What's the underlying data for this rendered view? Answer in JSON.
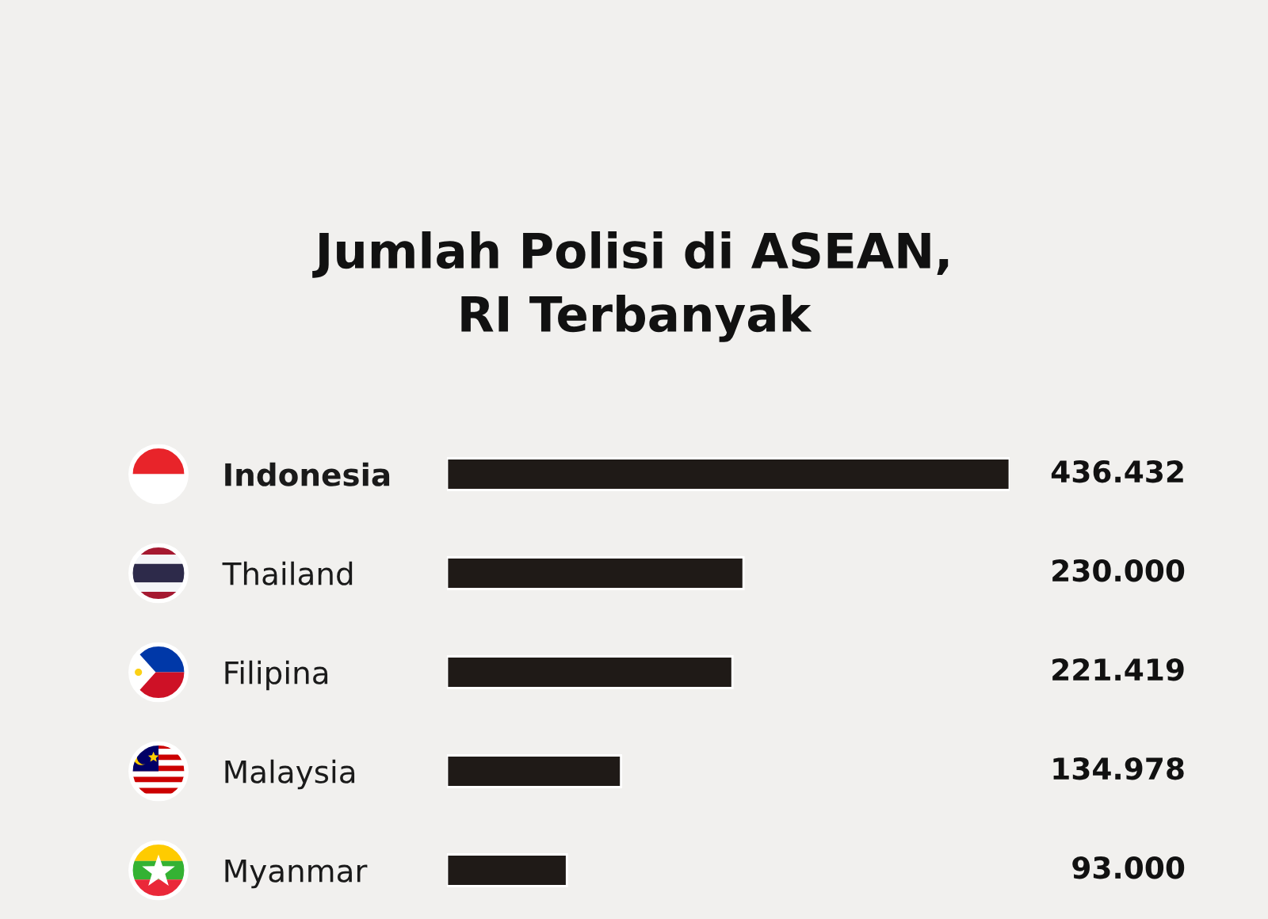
{
  "chart_data": {
    "type": "bar",
    "orientation": "horizontal",
    "title": "Jumlah Polisi di ASEAN,\nRI Terbanyak",
    "categories": [
      "Indonesia",
      "Thailand",
      "Filipina",
      "Malaysia",
      "Myanmar"
    ],
    "values": [
      436432,
      230000,
      221419,
      134978,
      93000
    ],
    "value_labels": [
      "436.432",
      "230.000",
      "221.419",
      "134.978",
      "93.000"
    ],
    "color": "#1f1a17"
  }
}
